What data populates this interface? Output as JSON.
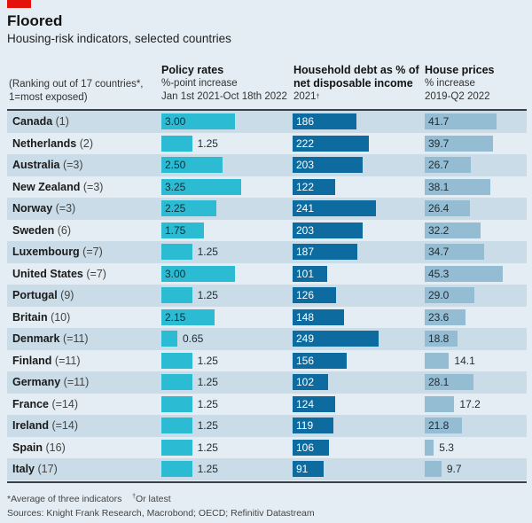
{
  "header": {
    "title": "Floored",
    "subtitle": "Housing-risk indicators, selected countries"
  },
  "columns": {
    "rank": {
      "line1": "(Ranking out of 17 countries*,",
      "line2": "1=most exposed)"
    },
    "policy": {
      "title": "Policy rates",
      "line1": "%-point increase",
      "line2": "Jan 1st 2021-Oct 18th 2022"
    },
    "debt": {
      "title1": "Household debt as % of",
      "title2": "net disposable income",
      "line1": "2021",
      "line1_mark": "†"
    },
    "house": {
      "title": "House prices",
      "line1": "% increase",
      "line2": "2019-Q2 2022"
    }
  },
  "colors": {
    "policy": "#2bbcd4",
    "debt": "#0d6ba0",
    "house": "#94bdd3",
    "accent": "#e3120b"
  },
  "footnotes": {
    "note1": "*Average of three indicators",
    "note2_mark": "†",
    "note2": "Or latest",
    "sources": "Sources: Knight Frank Research, Macrobond; OECD; Refinitiv Datastream"
  },
  "chart_data": {
    "type": "table",
    "title": "Floored",
    "subtitle": "Housing-risk indicators, selected countries",
    "columns": [
      "Country (rank)",
      "Policy rates, %-point increase Jan 1st 2021-Oct 18th 2022",
      "Household debt as % of net disposable income 2021",
      "House prices % increase 2019-Q2 2022"
    ],
    "rows": [
      {
        "country": "Canada",
        "rank": "(1)",
        "policy": "3.00",
        "debt": "186",
        "house": "41.7"
      },
      {
        "country": "Netherlands",
        "rank": "(2)",
        "policy": "1.25",
        "debt": "222",
        "house": "39.7"
      },
      {
        "country": "Australia",
        "rank": "(=3)",
        "policy": "2.50",
        "debt": "203",
        "house": "26.7"
      },
      {
        "country": "New Zealand",
        "rank": "(=3)",
        "policy": "3.25",
        "debt": "122",
        "house": "38.1"
      },
      {
        "country": "Norway",
        "rank": "(=3)",
        "policy": "2.25",
        "debt": "241",
        "house": "26.4"
      },
      {
        "country": "Sweden",
        "rank": "(6)",
        "policy": "1.75",
        "debt": "203",
        "house": "32.2"
      },
      {
        "country": "Luxembourg",
        "rank": "(=7)",
        "policy": "1.25",
        "debt": "187",
        "house": "34.7"
      },
      {
        "country": "United States",
        "rank": "(=7)",
        "policy": "3.00",
        "debt": "101",
        "house": "45.3"
      },
      {
        "country": "Portugal",
        "rank": "(9)",
        "policy": "1.25",
        "debt": "126",
        "house": "29.0"
      },
      {
        "country": "Britain",
        "rank": "(10)",
        "policy": "2.15",
        "debt": "148",
        "house": "23.6"
      },
      {
        "country": "Denmark",
        "rank": "(=11)",
        "policy": "0.65",
        "debt": "249",
        "house": "18.8"
      },
      {
        "country": "Finland",
        "rank": "(=11)",
        "policy": "1.25",
        "debt": "156",
        "house": "14.1"
      },
      {
        "country": "Germany",
        "rank": "(=11)",
        "policy": "1.25",
        "debt": "102",
        "house": "28.1"
      },
      {
        "country": "France",
        "rank": "(=14)",
        "policy": "1.25",
        "debt": "124",
        "house": "17.2"
      },
      {
        "country": "Ireland",
        "rank": "(=14)",
        "policy": "1.25",
        "debt": "119",
        "house": "21.8"
      },
      {
        "country": "Spain",
        "rank": "(16)",
        "policy": "1.25",
        "debt": "106",
        "house": "5.3"
      },
      {
        "country": "Italy",
        "rank": "(17)",
        "policy": "1.25",
        "debt": "91",
        "house": "9.7"
      }
    ]
  }
}
